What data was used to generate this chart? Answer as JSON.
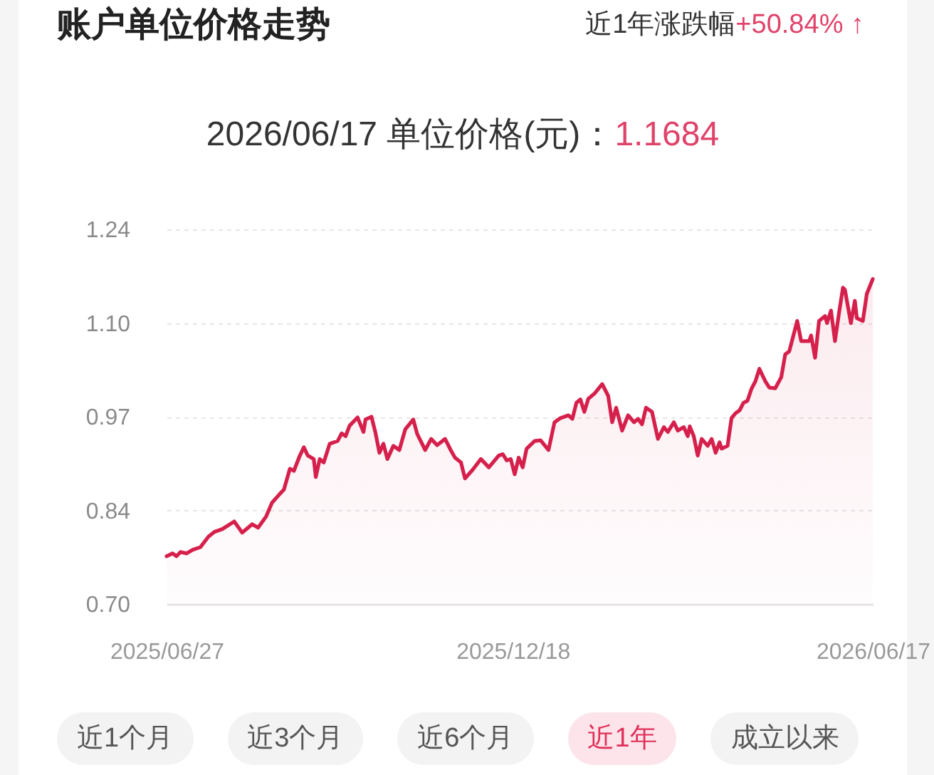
{
  "chart_data": {
    "type": "area",
    "title": "账户单位价格走势",
    "subtitle": "2026/06/17 单位价格(元)：",
    "annotations": [
      "近1年涨跌幅",
      "+50.84% ↑",
      "1.1684",
      "近1个月",
      "近3个月",
      "近6个月",
      "近1年",
      "成立以来"
    ],
    "x": [
      "2025-06-27",
      "2025-06-30",
      "2025-07-02",
      "2025-07-04",
      "2025-07-07",
      "2025-07-10",
      "2025-07-14",
      "2025-07-18",
      "2025-07-21",
      "2025-07-25",
      "2025-07-31",
      "2025-08-04",
      "2025-08-09",
      "2025-08-12",
      "2025-08-16",
      "2025-08-19",
      "2025-08-23",
      "2025-08-25",
      "2025-08-28",
      "2025-08-30",
      "2025-09-02",
      "2025-09-04",
      "2025-09-06",
      "2025-09-09",
      "2025-09-10",
      "2025-09-12",
      "2025-09-14",
      "2025-09-17",
      "2025-09-21",
      "2025-09-23",
      "2025-09-25",
      "2025-09-27",
      "2025-10-01",
      "2025-10-04",
      "2025-10-05",
      "2025-10-08",
      "2025-10-10",
      "2025-10-12",
      "2025-10-14",
      "2025-10-16",
      "2025-10-19",
      "2025-10-22",
      "2025-10-25",
      "2025-10-29",
      "2025-10-31",
      "2025-11-04",
      "2025-11-07",
      "2025-11-10",
      "2025-11-14",
      "2025-11-17",
      "2025-11-19",
      "2025-11-22",
      "2025-11-24",
      "2025-11-28",
      "2025-12-02",
      "2025-12-06",
      "2025-12-11",
      "2025-12-13",
      "2025-12-15",
      "2025-12-17",
      "2025-12-19",
      "2025-12-21",
      "2025-12-23",
      "2025-12-25",
      "2025-12-29",
      "2026-01-01",
      "2026-01-05",
      "2026-01-08",
      "2026-01-11",
      "2026-01-15",
      "2026-01-17",
      "2026-01-19",
      "2026-01-21",
      "2026-01-23",
      "2026-01-25",
      "2026-01-28",
      "2026-02-01",
      "2026-02-04",
      "2026-02-06",
      "2026-02-08",
      "2026-02-11",
      "2026-02-14",
      "2026-02-17",
      "2026-02-19",
      "2026-02-21",
      "2026-02-23",
      "2026-02-26",
      "2026-03-01",
      "2026-03-04",
      "2026-03-06",
      "2026-03-09",
      "2026-03-11",
      "2026-03-14",
      "2026-03-16",
      "2026-03-17",
      "2026-03-19",
      "2026-03-21",
      "2026-03-23",
      "2026-03-26",
      "2026-03-28",
      "2026-03-30",
      "2026-04-01",
      "2026-04-02",
      "2026-04-05",
      "2026-04-07",
      "2026-04-09",
      "2026-04-11",
      "2026-04-13",
      "2026-04-15",
      "2026-04-17",
      "2026-04-19",
      "2026-04-21",
      "2026-04-24",
      "2026-04-26",
      "2026-04-29",
      "2026-05-02",
      "2026-05-04",
      "2026-05-06",
      "2026-05-08",
      "2026-05-10",
      "2026-05-12",
      "2026-05-16",
      "2026-05-17",
      "2026-05-19",
      "2026-05-21",
      "2026-05-24",
      "2026-05-25",
      "2026-05-27",
      "2026-05-29",
      "2026-05-31",
      "2026-06-02",
      "2026-06-03",
      "2026-06-06",
      "2026-06-08",
      "2026-06-09",
      "2026-06-12",
      "2026-06-14",
      "2026-06-17"
    ],
    "values": [
      0.769,
      0.773,
      0.769,
      0.775,
      0.773,
      0.778,
      0.782,
      0.797,
      0.804,
      0.808,
      0.819,
      0.803,
      0.815,
      0.81,
      0.826,
      0.846,
      0.859,
      0.865,
      0.895,
      0.892,
      0.914,
      0.926,
      0.914,
      0.909,
      0.883,
      0.909,
      0.904,
      0.931,
      0.935,
      0.946,
      0.942,
      0.957,
      0.969,
      0.948,
      0.966,
      0.97,
      0.947,
      0.918,
      0.931,
      0.909,
      0.928,
      0.922,
      0.952,
      0.966,
      0.945,
      0.922,
      0.938,
      0.929,
      0.938,
      0.921,
      0.911,
      0.904,
      0.881,
      0.894,
      0.909,
      0.897,
      0.914,
      0.916,
      0.907,
      0.909,
      0.887,
      0.911,
      0.897,
      0.924,
      0.935,
      0.936,
      0.922,
      0.962,
      0.968,
      0.972,
      0.967,
      0.99,
      0.995,
      0.977,
      0.996,
      1.003,
      1.017,
      1.0,
      0.962,
      0.983,
      0.95,
      0.972,
      0.962,
      0.967,
      0.959,
      0.983,
      0.977,
      0.938,
      0.955,
      0.948,
      0.962,
      0.95,
      0.955,
      0.942,
      0.956,
      0.942,
      0.914,
      0.938,
      0.928,
      0.938,
      0.918,
      0.933,
      0.924,
      0.928,
      0.968,
      0.975,
      0.979,
      0.99,
      0.993,
      1.01,
      1.021,
      1.039,
      1.021,
      1.012,
      1.011,
      1.027,
      1.06,
      1.064,
      1.086,
      1.108,
      1.079,
      1.079,
      1.087,
      1.055,
      1.108,
      1.115,
      1.105,
      1.123,
      1.079,
      1.119,
      1.156,
      1.153,
      1.105,
      1.137,
      1.112,
      1.108,
      1.147,
      1.1684
    ],
    "color": "#d6204c",
    "line_style": "solid",
    "xlim": [
      "2025-06-27",
      "2026-06-17"
    ],
    "xticks": [
      {
        "value": "2025-06-27",
        "label": "2025/06/27"
      },
      {
        "value": "2025-12-18",
        "label": "2025/12/18"
      },
      {
        "value": "2026-06-17",
        "label": "2026/06/17"
      }
    ],
    "ylim": [
      0.7,
      1.24
    ],
    "yticks": [
      {
        "value": 0.7,
        "label": "0.70"
      },
      {
        "value": 0.835,
        "label": "0.84"
      },
      0.97,
      {
        "value": 1.105,
        "label": "1.10"
      },
      1.24
    ],
    "grid": "y"
  }
}
